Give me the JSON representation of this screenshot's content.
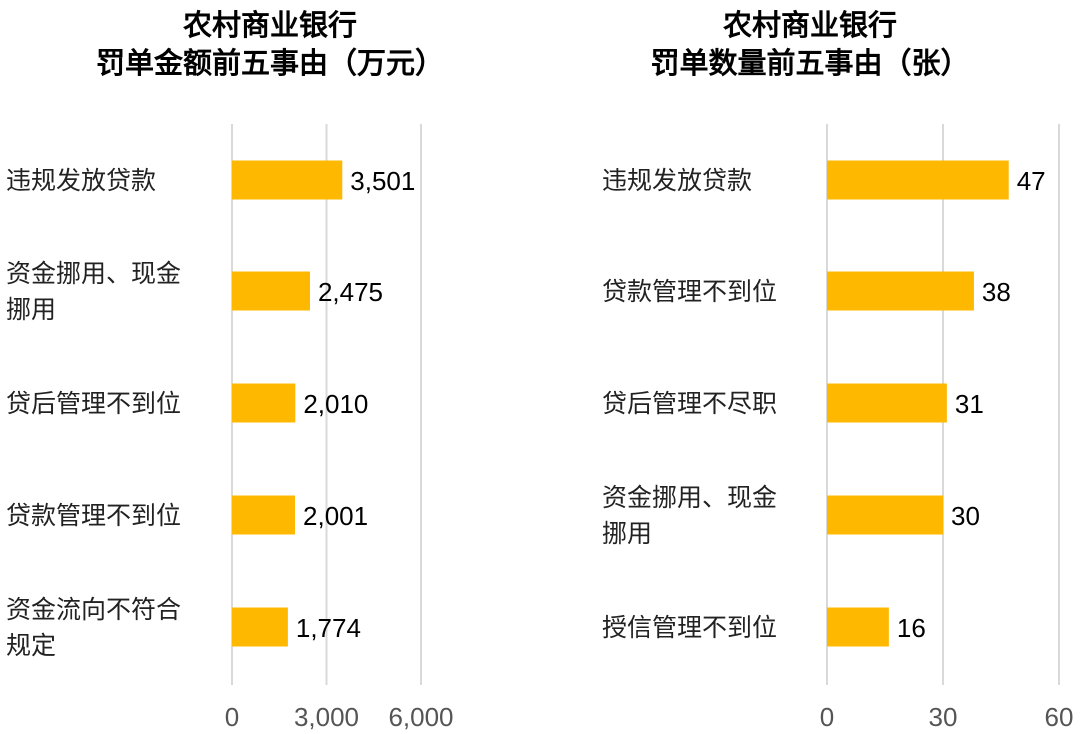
{
  "chart_data": [
    {
      "type": "bar",
      "orientation": "horizontal",
      "title": [
        "农村商业银行",
        "罚单金额前五事由（万元）"
      ],
      "categories": [
        [
          "违规发放贷款"
        ],
        [
          "资金挪用、现金",
          "挪用"
        ],
        [
          "贷后管理不到位"
        ],
        [
          "贷款管理不到位"
        ],
        [
          "资金流向不符合",
          "规定"
        ]
      ],
      "values": [
        3501,
        2475,
        2010,
        2001,
        1774
      ],
      "value_labels": [
        "3,501",
        "2,475",
        "2,010",
        "2,001",
        "1,774"
      ],
      "xlim": [
        0,
        6000
      ],
      "ticks": [
        0,
        3000,
        6000
      ],
      "tick_labels": [
        "0",
        "3,000",
        "6,000"
      ],
      "bar_color": "#FFB800",
      "grid": true
    },
    {
      "type": "bar",
      "orientation": "horizontal",
      "title": [
        "农村商业银行",
        "罚单数量前五事由（张）"
      ],
      "categories": [
        [
          "违规发放贷款"
        ],
        [
          "贷款管理不到位"
        ],
        [
          "贷后管理不尽职"
        ],
        [
          "资金挪用、现金",
          "挪用"
        ],
        [
          "授信管理不到位"
        ]
      ],
      "values": [
        47,
        38,
        31,
        30,
        16
      ],
      "value_labels": [
        "47",
        "38",
        "31",
        "30",
        "16"
      ],
      "xlim": [
        0,
        60
      ],
      "ticks": [
        0,
        30,
        60
      ],
      "tick_labels": [
        "0",
        "30",
        "60"
      ],
      "bar_color": "#FFB800",
      "grid": true
    }
  ]
}
